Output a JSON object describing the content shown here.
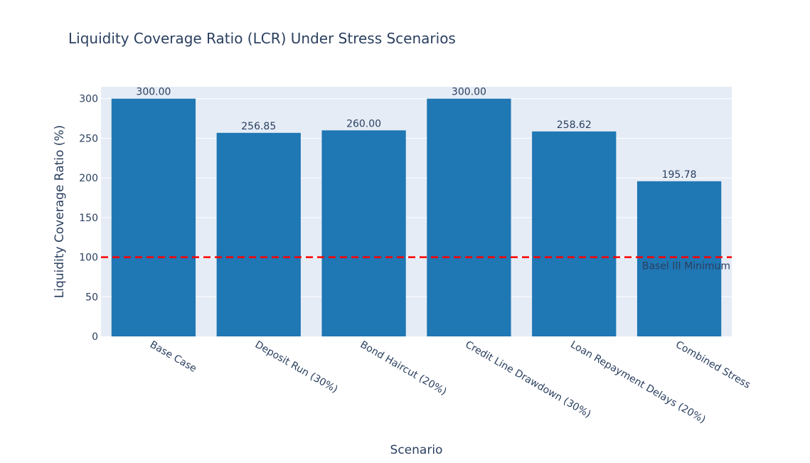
{
  "chart_data": {
    "type": "bar",
    "title": "Liquidity Coverage Ratio (LCR) Under Stress Scenarios",
    "xlabel": "Scenario",
    "ylabel": "Liquidity Coverage Ratio (%)",
    "categories": [
      "Base Case",
      "Deposit Run (30%)",
      "Bond Haircut (20%)",
      "Credit Line Drawdown (30%)",
      "Loan Repayment Delays (20%)",
      "Combined Stress"
    ],
    "values": [
      300.0,
      256.85,
      260.0,
      300.0,
      258.62,
      195.78
    ],
    "value_labels": [
      "300.00",
      "256.85",
      "260.00",
      "300.00",
      "258.62",
      "195.78"
    ],
    "ylim": [
      0,
      315
    ],
    "yticks": [
      0,
      50,
      100,
      150,
      200,
      250,
      300
    ],
    "reference_line": {
      "value": 100,
      "label": "Basel III Minimum",
      "color": "#ff0000",
      "style": "dashed"
    },
    "bar_color": "#1f77b4",
    "plot_bgcolor": "#e5ecf6",
    "grid": true,
    "legend": "none"
  }
}
